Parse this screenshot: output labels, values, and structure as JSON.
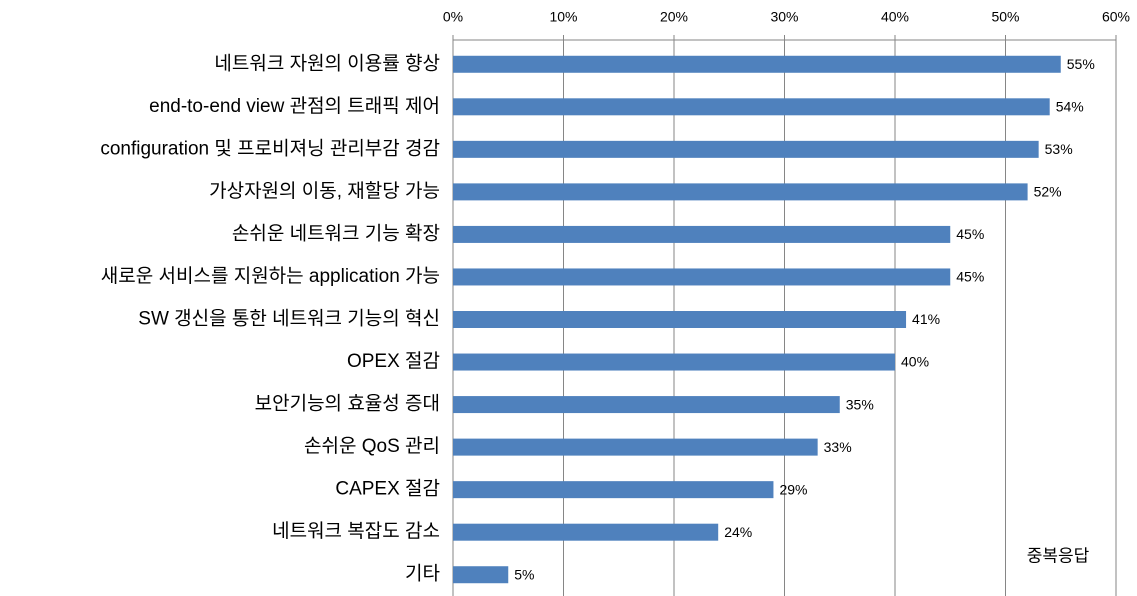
{
  "chart_data": {
    "type": "bar",
    "orientation": "horizontal",
    "categories": [
      "네트워크 자원의 이용률 향상",
      "end-to-end view 관점의 트래픽 제어",
      "configuration 및 프로비져닝 관리부감 경감",
      "가상자원의 이동, 재할당 가능",
      "손쉬운 네트워크 기능 확장",
      "새로운 서비스를 지원하는 application 가능",
      "SW 갱신을 통한 네트워크 기능의 혁신",
      "OPEX 절감",
      "보안기능의 효율성 증대",
      "손쉬운 QoS 관리",
      "CAPEX 절감",
      "네트워크 복잡도 감소",
      "기타"
    ],
    "values": [
      55,
      54,
      53,
      52,
      45,
      45,
      41,
      40,
      35,
      33,
      29,
      24,
      5
    ],
    "value_labels": [
      "55%",
      "54%",
      "53%",
      "52%",
      "45%",
      "45%",
      "41%",
      "40%",
      "35%",
      "33%",
      "29%",
      "24%",
      "5%"
    ],
    "color": "#4f81bd",
    "xlim": [
      0,
      60
    ],
    "xticks": [
      {
        "value": 0,
        "label": "0%"
      },
      {
        "value": 10,
        "label": "10%"
      },
      {
        "value": 20,
        "label": "20%"
      },
      {
        "value": 30,
        "label": "30%"
      },
      {
        "value": 40,
        "label": "40%"
      },
      {
        "value": 50,
        "label": "50%"
      },
      {
        "value": 60,
        "label": "60%"
      }
    ],
    "grid": true,
    "annotation": "중복응답"
  }
}
